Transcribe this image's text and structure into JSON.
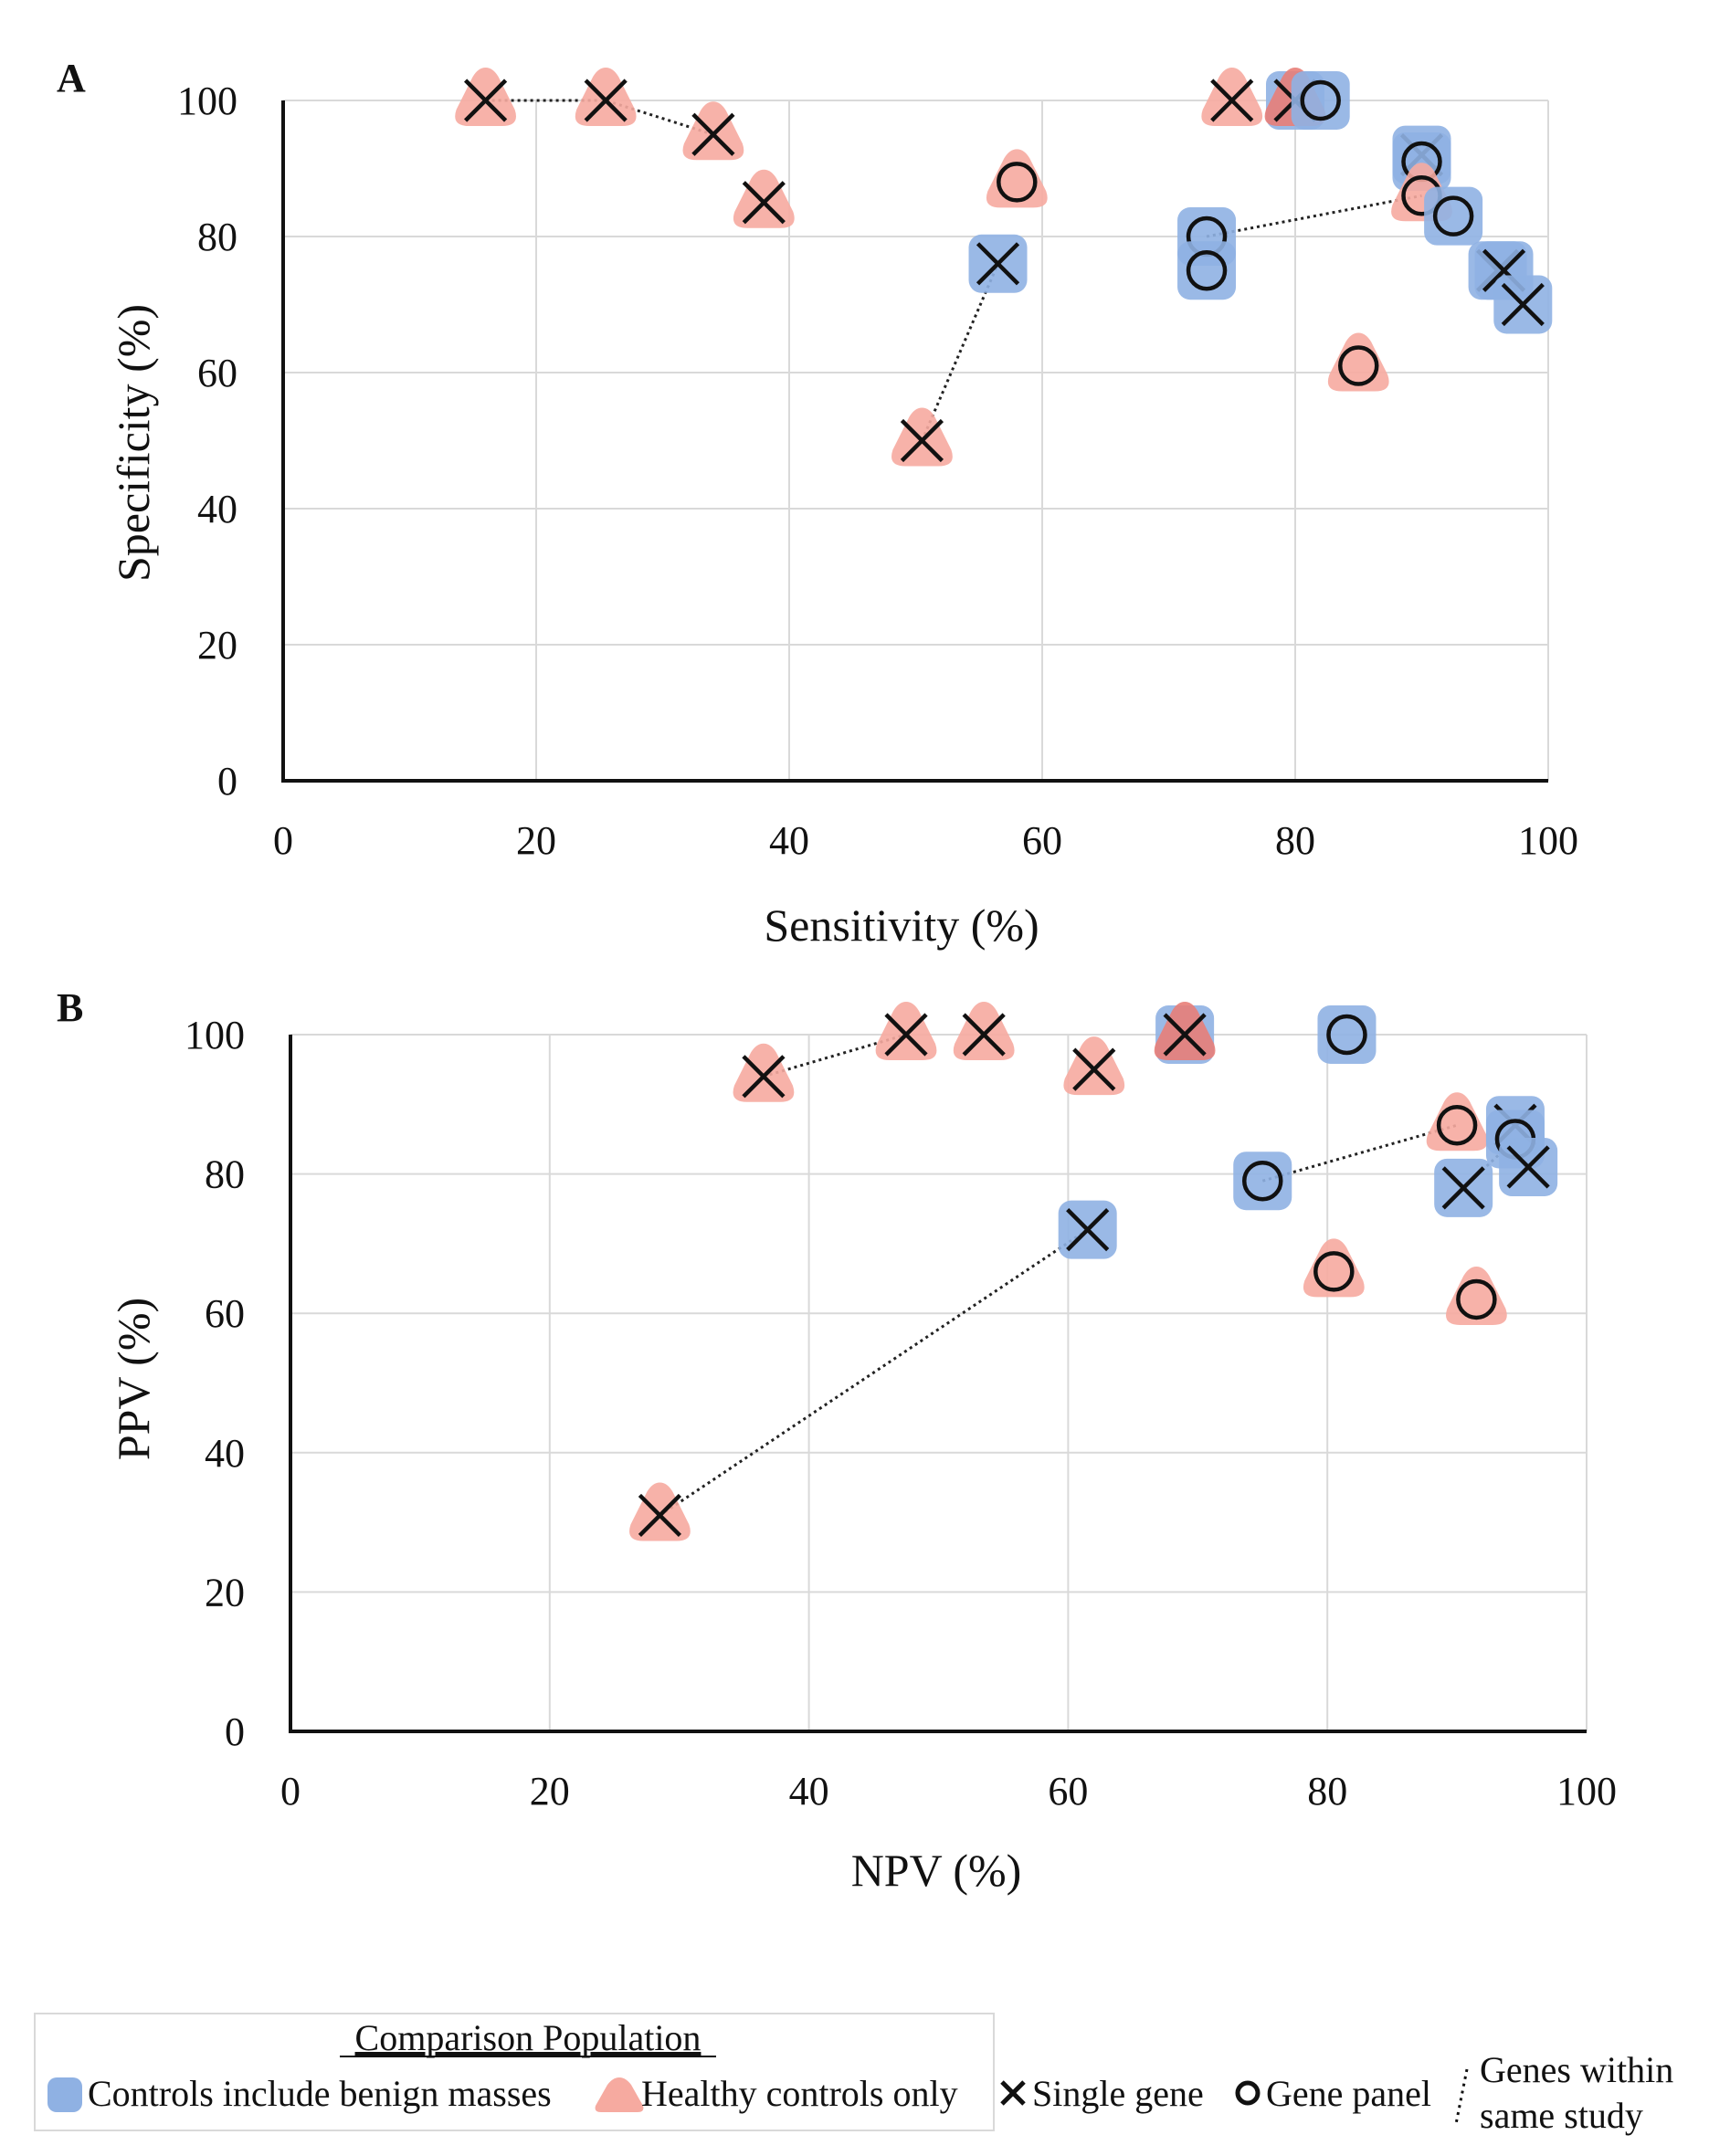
{
  "chart_data": [
    {
      "panel": "A",
      "type": "scatter",
      "xlabel": "Sensitivity (%)",
      "ylabel": "Specificity (%)",
      "xlim": [
        0,
        100
      ],
      "ylim": [
        0,
        100
      ],
      "xticks": [
        "0",
        "20",
        "40",
        "60",
        "80",
        "100"
      ],
      "yticks": [
        "0",
        "20",
        "40",
        "60",
        "80",
        "100"
      ],
      "grid": true,
      "points": [
        {
          "x": 16,
          "y": 100,
          "population": "healthy",
          "marker": "x",
          "group": "a1"
        },
        {
          "x": 25.5,
          "y": 100,
          "population": "healthy",
          "marker": "x",
          "group": "a1"
        },
        {
          "x": 34,
          "y": 95,
          "population": "healthy",
          "marker": "x",
          "group": "a1"
        },
        {
          "x": 38,
          "y": 85,
          "population": "healthy",
          "marker": "x"
        },
        {
          "x": 50.5,
          "y": 50,
          "population": "healthy",
          "marker": "x",
          "group": "a2"
        },
        {
          "x": 56.5,
          "y": 76,
          "population": "benign",
          "marker": "x",
          "group": "a2"
        },
        {
          "x": 58,
          "y": 88,
          "population": "healthy",
          "marker": "o"
        },
        {
          "x": 73,
          "y": 80,
          "population": "benign",
          "marker": "o",
          "group": "a3"
        },
        {
          "x": 73,
          "y": 75,
          "population": "benign",
          "marker": "o"
        },
        {
          "x": 75,
          "y": 100,
          "population": "healthy",
          "marker": "x"
        },
        {
          "x": 80,
          "y": 100,
          "population": "both",
          "marker": "x"
        },
        {
          "x": 82,
          "y": 100,
          "population": "benign",
          "marker": "o"
        },
        {
          "x": 85,
          "y": 61,
          "population": "healthy",
          "marker": "o"
        },
        {
          "x": 90,
          "y": 92,
          "population": "benign",
          "marker": "x"
        },
        {
          "x": 90,
          "y": 91,
          "population": "benign",
          "marker": "o"
        },
        {
          "x": 90,
          "y": 86,
          "population": "healthy",
          "marker": "o",
          "group": "a3"
        },
        {
          "x": 92.5,
          "y": 83,
          "population": "benign",
          "marker": "o"
        },
        {
          "x": 96,
          "y": 75,
          "population": "benign",
          "marker": "x"
        },
        {
          "x": 96.5,
          "y": 75,
          "population": "benign",
          "marker": "x"
        },
        {
          "x": 98,
          "y": 70,
          "population": "benign",
          "marker": "x"
        }
      ]
    },
    {
      "panel": "B",
      "type": "scatter",
      "xlabel": "NPV (%)",
      "ylabel": "PPV (%)",
      "xlim": [
        0,
        100
      ],
      "ylim": [
        0,
        100
      ],
      "xticks": [
        "0",
        "20",
        "40",
        "60",
        "80",
        "100"
      ],
      "yticks": [
        "0",
        "20",
        "40",
        "60",
        "80",
        "100"
      ],
      "grid": true,
      "points": [
        {
          "x": 28.5,
          "y": 31,
          "population": "healthy",
          "marker": "x",
          "group": "b2"
        },
        {
          "x": 61.5,
          "y": 72,
          "population": "benign",
          "marker": "x",
          "group": "b2"
        },
        {
          "x": 36.5,
          "y": 94,
          "population": "healthy",
          "marker": "x",
          "group": "b1"
        },
        {
          "x": 47.5,
          "y": 100,
          "population": "healthy",
          "marker": "x",
          "group": "b1"
        },
        {
          "x": 53.5,
          "y": 100,
          "population": "healthy",
          "marker": "x"
        },
        {
          "x": 62,
          "y": 95,
          "population": "healthy",
          "marker": "x"
        },
        {
          "x": 69,
          "y": 100,
          "population": "both",
          "marker": "x"
        },
        {
          "x": 75,
          "y": 79,
          "population": "benign",
          "marker": "o",
          "group": "b3"
        },
        {
          "x": 81.5,
          "y": 100,
          "population": "benign",
          "marker": "o"
        },
        {
          "x": 80.5,
          "y": 66,
          "population": "healthy",
          "marker": "o"
        },
        {
          "x": 90,
          "y": 87,
          "population": "healthy",
          "marker": "o",
          "group": "b3"
        },
        {
          "x": 91.5,
          "y": 62,
          "population": "healthy",
          "marker": "o"
        },
        {
          "x": 90.5,
          "y": 78,
          "population": "benign",
          "marker": "x",
          "group": "b4"
        },
        {
          "x": 94.5,
          "y": 87,
          "population": "benign",
          "marker": "x"
        },
        {
          "x": 94.5,
          "y": 85,
          "population": "benign",
          "marker": "o",
          "group": "b4"
        },
        {
          "x": 95.5,
          "y": 81,
          "population": "benign",
          "marker": "x"
        }
      ]
    }
  ],
  "legend": {
    "title": "Comparison Population",
    "benign_label": "Controls include benign masses",
    "healthy_label": "Healthy controls only",
    "single_label": "Single gene",
    "panel_label": "Gene panel",
    "study_label_1": "Genes within",
    "study_label_2": "same study"
  },
  "colors": {
    "benign": "#8fb1e3",
    "healthy": "#f6aaa0",
    "both": "#e87e78",
    "marker": "#111111"
  }
}
